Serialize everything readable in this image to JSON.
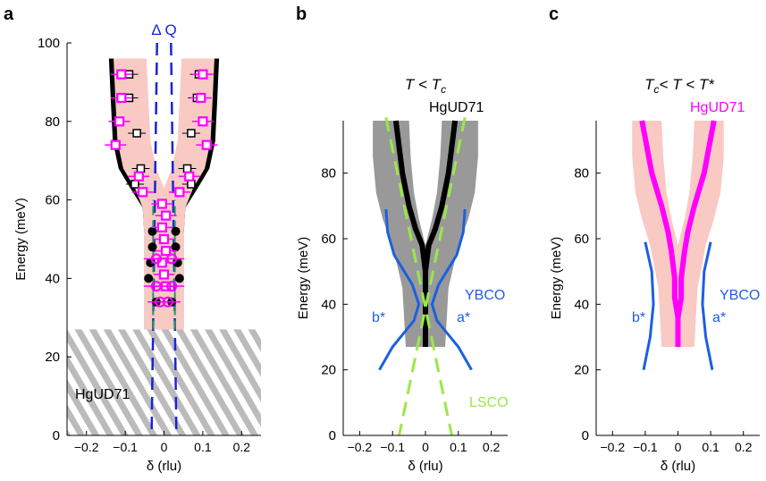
{
  "figure": {
    "colors": {
      "pink": "#f9c9c4",
      "black": "#000000",
      "gray": "#999999",
      "magenta": "#ff00ff",
      "blue": "#1d5fe0",
      "dash_blue": "#1a24d6",
      "green": "#99e84a",
      "dark_green": "#1f9a5a",
      "hatch": "#bbbbbb"
    }
  },
  "chart_data": [
    {
      "panel": "a",
      "type": "scatter",
      "xlabel": "δ (rlu)",
      "ylabel": "Energy (meV)",
      "xlim": [
        -0.25,
        0.25
      ],
      "ylim": [
        0,
        100
      ],
      "xticks": [
        -0.2,
        -0.1,
        0,
        0.1,
        0.2
      ],
      "yticks": [
        0,
        20,
        40,
        60,
        80,
        100
      ],
      "xticklabels": [
        "−0.2",
        "−0.1",
        "0",
        "0.1",
        "0.2"
      ],
      "yticklabels": [
        "0",
        "20",
        "40",
        "60",
        "80",
        "100"
      ],
      "annotations": {
        "delta_q": "Δ Q",
        "sample": "HgUD71"
      },
      "hatched_region": {
        "ymin": 0,
        "ymax": 27
      },
      "band": {
        "energy": [
          27,
          40,
          50,
          58,
          63,
          68,
          75,
          85,
          96
        ],
        "outer": [
          0.05,
          0.05,
          0.05,
          0.055,
          0.075,
          0.105,
          0.12,
          0.125,
          0.13
        ],
        "inner": [
          0,
          0,
          0,
          0,
          0,
          0.02,
          0.035,
          0.04,
          0.045
        ]
      },
      "delta_q_lines": {
        "x0": [
          0.023,
          0.023
        ],
        "top": [
          -0.018,
          0.018
        ],
        "x_bottom": [
          -0.032,
          0.032
        ]
      },
      "fit_lines": {
        "x": [
          -0.028,
          0.028
        ],
        "ymin": 27,
        "ymax": 60
      },
      "magenta_squares": [
        {
          "x": -0.11,
          "y": 92
        },
        {
          "x": 0.1,
          "y": 92
        },
        {
          "x": -0.11,
          "y": 86
        },
        {
          "x": 0.095,
          "y": 86
        },
        {
          "x": -0.115,
          "y": 80
        },
        {
          "x": 0.1,
          "y": 80
        },
        {
          "x": -0.125,
          "y": 74
        },
        {
          "x": 0.11,
          "y": 74
        },
        {
          "x": -0.065,
          "y": 66
        },
        {
          "x": 0.065,
          "y": 66
        },
        {
          "x": -0.055,
          "y": 62
        },
        {
          "x": 0.04,
          "y": 62
        },
        {
          "x": -0.005,
          "y": 59
        },
        {
          "x": 0.005,
          "y": 56
        },
        {
          "x": -0.005,
          "y": 53
        },
        {
          "x": 0.0,
          "y": 50
        },
        {
          "x": 0.005,
          "y": 47
        },
        {
          "x": -0.005,
          "y": 44
        },
        {
          "x": 0.0,
          "y": 41
        },
        {
          "x": 0.005,
          "y": 38
        }
      ],
      "black_squares": [
        {
          "x": -0.09,
          "y": 92
        },
        {
          "x": 0.09,
          "y": 92
        },
        {
          "x": -0.09,
          "y": 86
        },
        {
          "x": 0.085,
          "y": 86
        },
        {
          "x": -0.07,
          "y": 77
        },
        {
          "x": 0.07,
          "y": 77
        },
        {
          "x": -0.06,
          "y": 68
        },
        {
          "x": 0.06,
          "y": 68
        },
        {
          "x": -0.075,
          "y": 64
        },
        {
          "x": 0.07,
          "y": 64
        }
      ],
      "black_circles": [
        {
          "x": -0.03,
          "y": 52
        },
        {
          "x": 0.03,
          "y": 52
        },
        {
          "x": -0.03,
          "y": 48
        },
        {
          "x": 0.03,
          "y": 48
        },
        {
          "x": -0.035,
          "y": 44
        },
        {
          "x": 0.035,
          "y": 44
        },
        {
          "x": -0.04,
          "y": 40
        },
        {
          "x": 0.04,
          "y": 40
        },
        {
          "x": -0.02,
          "y": 34
        },
        {
          "x": 0.02,
          "y": 34
        }
      ],
      "magenta_circles": [
        {
          "x": -0.02,
          "y": 45
        },
        {
          "x": 0.02,
          "y": 45
        },
        {
          "x": -0.02,
          "y": 38
        },
        {
          "x": 0.02,
          "y": 38
        },
        {
          "x": -0.01,
          "y": 34
        },
        {
          "x": 0.01,
          "y": 34
        }
      ]
    },
    {
      "panel": "b",
      "type": "line",
      "title": "T < T_c",
      "xlabel": "δ (rlu)",
      "ylabel": "Energy (meV)",
      "xlim": [
        -0.25,
        0.25
      ],
      "ylim": [
        0,
        100
      ],
      "xticks": [
        -0.2,
        -0.1,
        0,
        0.1,
        0.2
      ],
      "yticks": [
        0,
        20,
        40,
        60,
        80
      ],
      "xticklabels": [
        "−0.2",
        "−0.1",
        "0",
        "0.1",
        "0.2"
      ],
      "yticklabels": [
        "0",
        "20",
        "40",
        "60",
        "80"
      ],
      "labels": {
        "hg": "HgUD71",
        "ybco": "YBCO",
        "lsco": "LSCO",
        "a": "a*",
        "b": "b*"
      },
      "gray_band": {
        "energy": [
          27,
          45,
          58,
          66,
          74,
          85,
          96
        ],
        "outer": [
          0.06,
          0.07,
          0.1,
          0.13,
          0.15,
          0.16,
          0.16
        ],
        "inner": [
          0,
          0,
          0,
          0.02,
          0.035,
          0.045,
          0.05
        ]
      },
      "black_line": {
        "energy": [
          27,
          50,
          58,
          63,
          70,
          80,
          96
        ],
        "x": [
          0.0,
          0.0,
          0.01,
          0.03,
          0.05,
          0.07,
          0.09
        ]
      },
      "lsco_dashed": {
        "x_top": 0.12,
        "x_bottom": 0.08,
        "y_top": 97,
        "y_cross": 27
      },
      "ybco": {
        "energy": [
          20,
          27,
          35,
          40,
          46,
          55,
          62,
          69
        ],
        "x": [
          0.14,
          0.1,
          0.035,
          0.02,
          0.04,
          0.095,
          0.115,
          0.12
        ]
      }
    },
    {
      "panel": "c",
      "type": "line",
      "title": "T_c < T < T*",
      "xlabel": "δ (rlu)",
      "ylabel": "Energy (meV)",
      "xlim": [
        -0.25,
        0.25
      ],
      "ylim": [
        0,
        100
      ],
      "xticks": [
        -0.2,
        -0.1,
        0,
        0.1,
        0.2
      ],
      "yticks": [
        0,
        20,
        40,
        60,
        80
      ],
      "xticklabels": [
        "−0.2",
        "−0.1",
        "0",
        "0.1",
        "0.2"
      ],
      "yticklabels": [
        "0",
        "20",
        "40",
        "60",
        "80"
      ],
      "labels": {
        "hg": "HgUD71",
        "ybco": "YBCO",
        "a": "a*",
        "b": "b*"
      },
      "pink_band": {
        "energy": [
          27,
          45,
          58,
          66,
          74,
          85,
          96
        ],
        "outer": [
          0.05,
          0.06,
          0.085,
          0.11,
          0.13,
          0.14,
          0.14
        ],
        "inner": [
          0,
          0,
          0,
          0.02,
          0.035,
          0.045,
          0.05
        ]
      },
      "magenta_line": {
        "energy": [
          27,
          36,
          42,
          48,
          56,
          62,
          70,
          80,
          96
        ],
        "x": [
          0.0,
          0.0,
          0.01,
          0.01,
          0.02,
          0.03,
          0.05,
          0.08,
          0.11
        ]
      },
      "ybco": {
        "energy": [
          20,
          30,
          40,
          50,
          59
        ],
        "x": [
          0.105,
          0.085,
          0.075,
          0.08,
          0.1
        ]
      }
    }
  ]
}
